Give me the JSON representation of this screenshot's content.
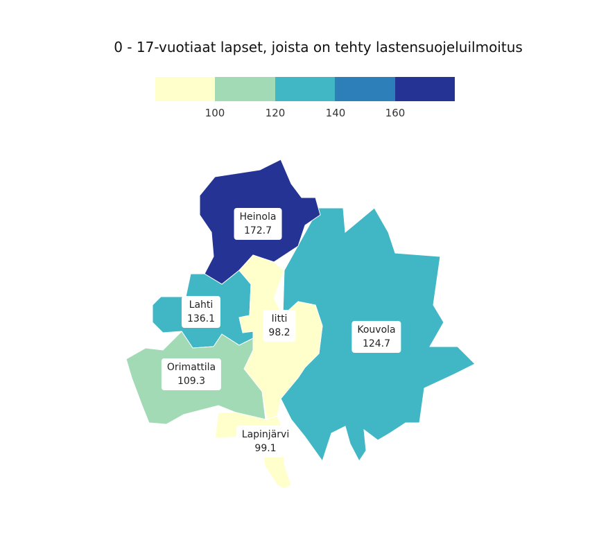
{
  "title": "0 - 17-vuotiaat lapset, joista on tehty lastensuojeluilmoitus",
  "legend": {
    "colors": [
      "#ffffcc",
      "#a1dab4",
      "#41b6c4",
      "#2c7fb8",
      "#253494"
    ],
    "ticks": [
      "100",
      "120",
      "140",
      "160"
    ]
  },
  "regions": [
    {
      "name": "Heinola",
      "value": "172.7",
      "color": "#253494"
    },
    {
      "name": "Lahti",
      "value": "136.1",
      "color": "#41b6c4"
    },
    {
      "name": "Iitti",
      "value": "98.2",
      "color": "#ffffcc"
    },
    {
      "name": "Kouvola",
      "value": "124.7",
      "color": "#41b6c4"
    },
    {
      "name": "Orimattila",
      "value": "109.3",
      "color": "#a1dab4"
    },
    {
      "name": "Lapinjärvi",
      "value": "99.1",
      "color": "#ffffcc"
    }
  ]
}
